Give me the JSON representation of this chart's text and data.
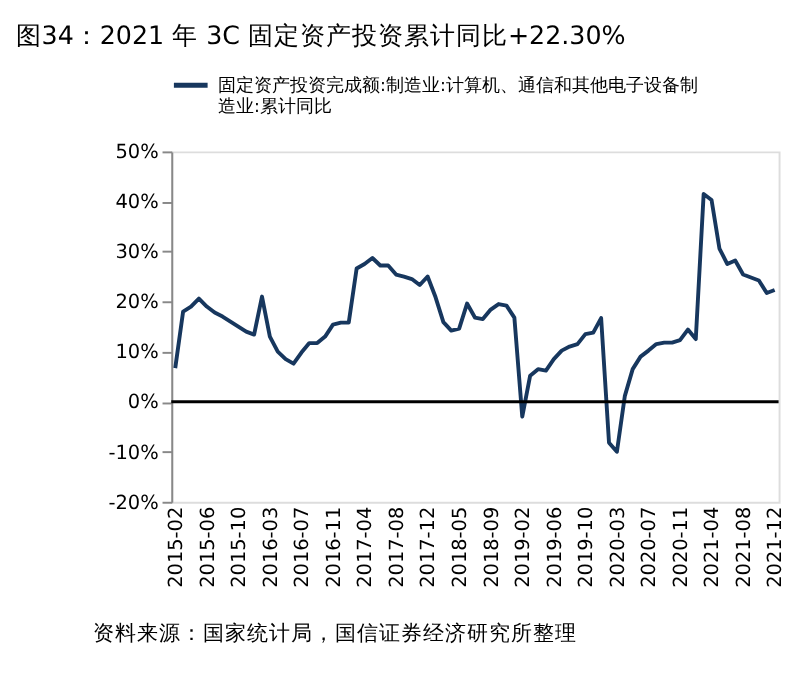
{
  "chart_data": {
    "type": "line",
    "title": "图34：2021 年 3C 固定资产投资累计同比+22.30%",
    "categories": [
      "2015-02",
      null,
      null,
      null,
      "2015-06",
      null,
      null,
      null,
      "2015-10",
      null,
      null,
      null,
      "2016-03",
      null,
      null,
      null,
      "2016-07",
      null,
      null,
      null,
      "2016-11",
      null,
      null,
      null,
      "2017-04",
      null,
      null,
      null,
      "2017-08",
      null,
      null,
      null,
      "2017-12",
      null,
      null,
      null,
      "2018-05",
      null,
      null,
      null,
      "2018-09",
      null,
      null,
      null,
      "2019-02",
      null,
      null,
      null,
      "2019-06",
      null,
      null,
      null,
      "2019-10",
      null,
      null,
      null,
      "2020-03",
      null,
      null,
      null,
      "2020-07",
      null,
      null,
      null,
      "2020-11",
      null,
      null,
      null,
      "2021-04",
      null,
      null,
      null,
      "2021-08",
      null,
      null,
      null,
      "2021-12"
    ],
    "series": [
      {
        "name": "固定资产投资完成额:制造业:计算机、通信和其他电子设备制造业:累计同比",
        "color": "#17375e",
        "values": [
          6.7,
          18,
          19,
          20.6,
          19,
          17.8,
          17,
          16,
          15,
          14,
          13.4,
          21,
          13,
          10,
          8.5,
          7.6,
          9.8,
          11.7,
          11.7,
          13,
          15.4,
          15.8,
          15.8,
          26.6,
          27.5,
          28.7,
          27.2,
          27.2,
          25.4,
          25,
          24.5,
          23.3,
          25,
          20.9,
          15.9,
          14.2,
          14.6,
          19.6,
          16.8,
          16.5,
          18.4,
          19.5,
          19.2,
          16.8,
          -3,
          5.2,
          6.5,
          6.2,
          8.5,
          10.2,
          11,
          11.5,
          13.5,
          13.8,
          16.7,
          -8.2,
          -10,
          1.1,
          6.5,
          9,
          10.2,
          11.5,
          11.8,
          11.8,
          12.3,
          14.4,
          12.5,
          41.5,
          40.3,
          30.6,
          27.5,
          28.2,
          25.4,
          24.8,
          24.2,
          21.7,
          22.3
        ]
      }
    ],
    "ylim": [
      -20,
      50
    ],
    "yticks": [
      {
        "value": -20,
        "label": "-20%"
      },
      {
        "value": -10,
        "label": "-10%"
      },
      {
        "value": 0,
        "label": "0%"
      },
      {
        "value": 10,
        "label": "10%"
      },
      {
        "value": 20,
        "label": "20%"
      },
      {
        "value": 30,
        "label": "30%"
      },
      {
        "value": 40,
        "label": "40%"
      },
      {
        "value": 50,
        "label": "50%"
      }
    ],
    "ref_lines": [
      {
        "axis": "y",
        "value": 0,
        "color": "#000000"
      }
    ],
    "grid": false,
    "legend": "top",
    "marker": "none",
    "line_style": "solid",
    "annotations": [
      "资料来源：国家统计局，国信证券经济研究所整理"
    ]
  }
}
